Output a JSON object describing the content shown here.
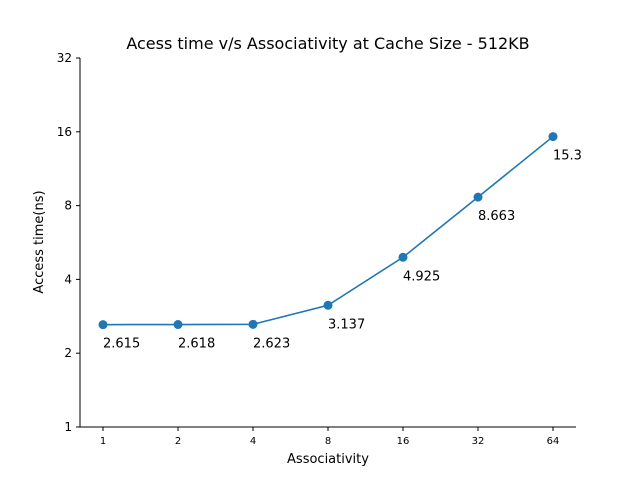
{
  "chart_data": {
    "type": "line",
    "title": "Acess time v/s Associativity at Cache Size - 512KB",
    "xlabel": "Associativity",
    "ylabel": "Access time(ns)",
    "x_scale": "log2",
    "y_scale": "log2",
    "x": [
      1,
      2,
      4,
      8,
      16,
      32,
      64
    ],
    "x_tick_labels": [
      "1",
      "2",
      "4",
      "8",
      "16",
      "32",
      "64"
    ],
    "y_ticks": [
      1,
      2,
      4,
      8,
      16,
      32
    ],
    "y_tick_labels": [
      "1",
      "2",
      "4",
      "8",
      "16",
      "32"
    ],
    "ylim": [
      1,
      32
    ],
    "grid": false,
    "legend": "none",
    "series": [
      {
        "color": "#1f77b4",
        "marker": "circle",
        "values": [
          2.615,
          2.618,
          2.623,
          3.137,
          4.925,
          8.663,
          15.3
        ],
        "data_labels": [
          "2.615",
          "2.618",
          "2.623",
          "3.137",
          "4.925",
          "8.663",
          "15.3"
        ]
      }
    ]
  }
}
